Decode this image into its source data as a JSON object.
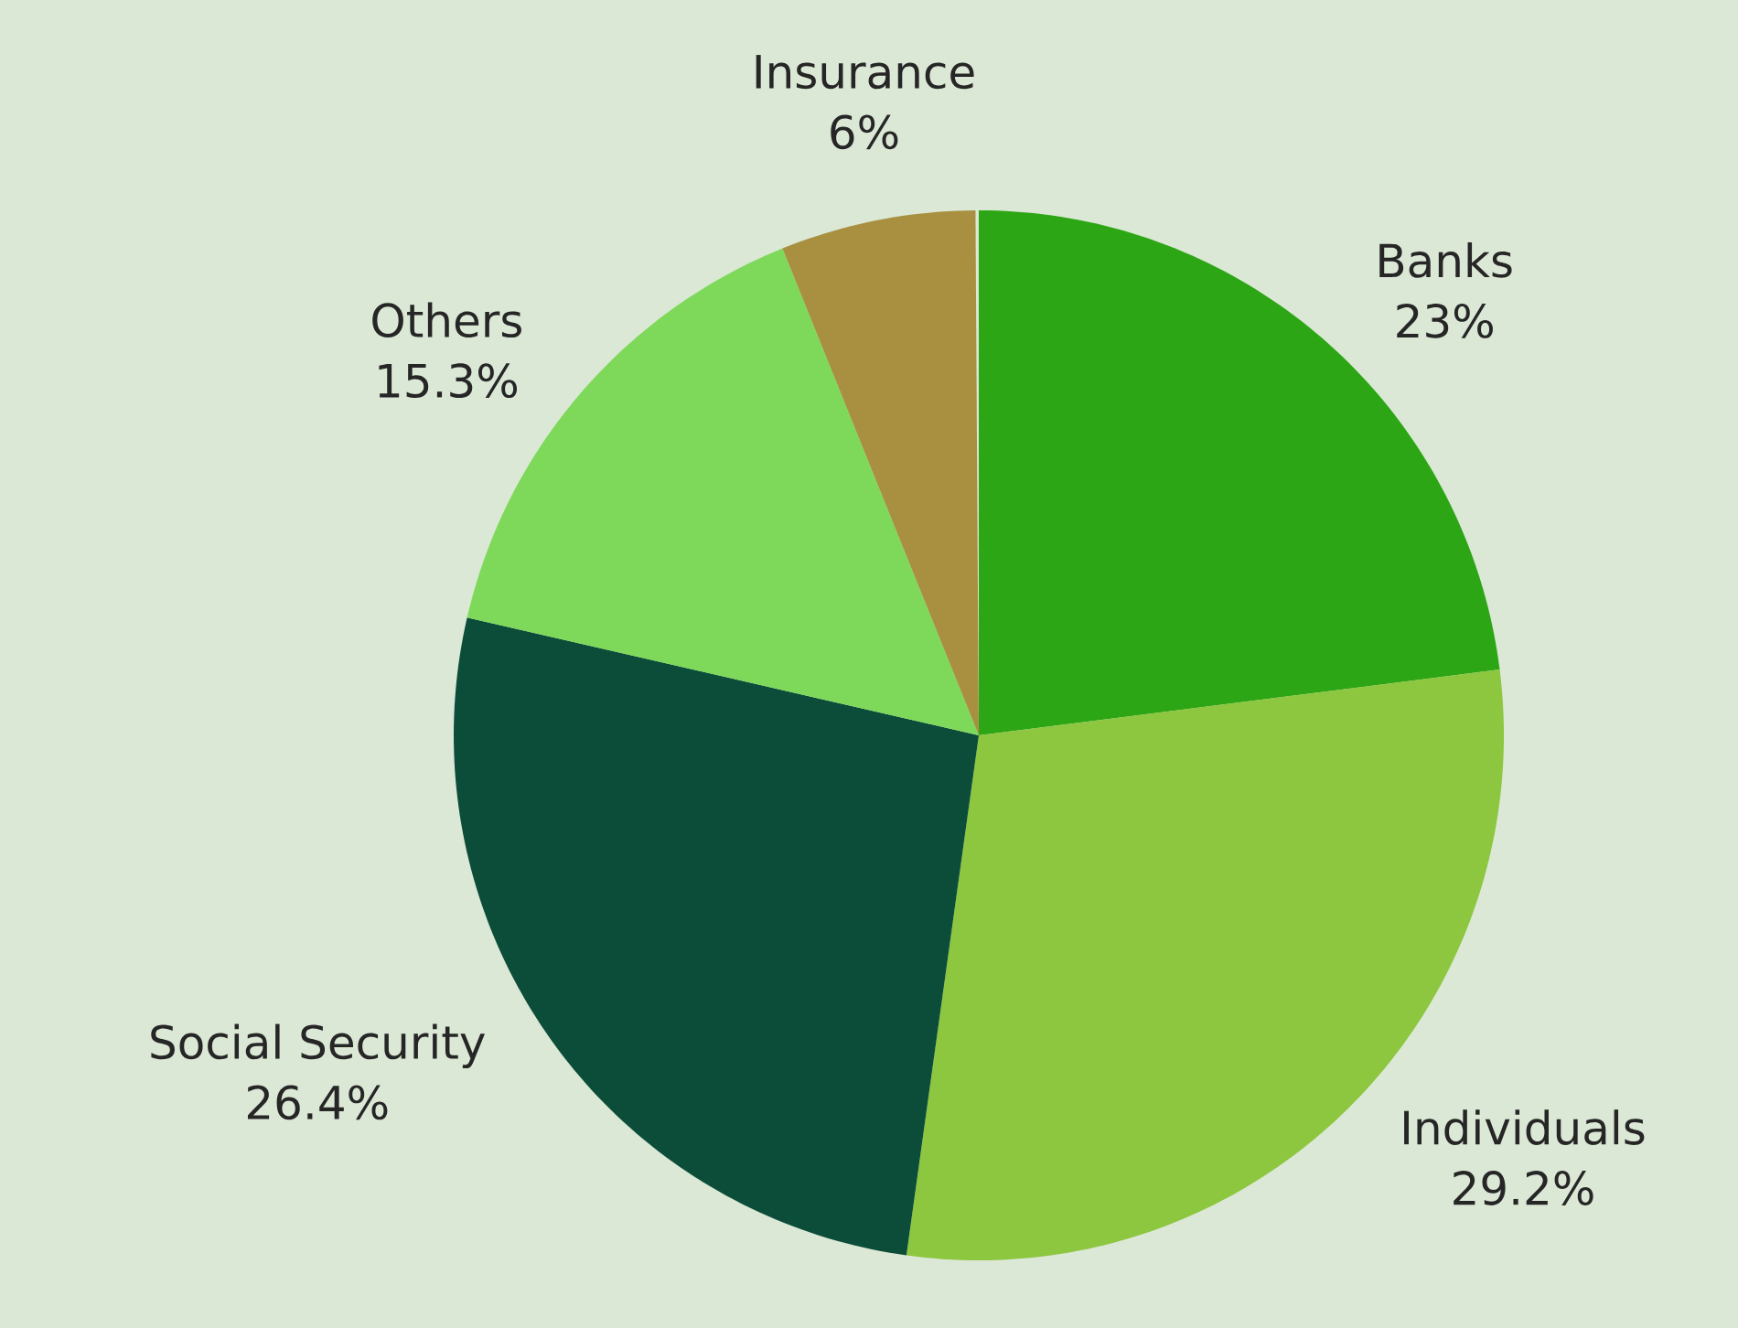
{
  "chart_data": {
    "type": "pie",
    "categories": [
      "Banks",
      "Individuals",
      "Social Security",
      "Others",
      "Insurance"
    ],
    "values": [
      23,
      29.2,
      26.4,
      15.3,
      6
    ],
    "value_labels": [
      "23%",
      "29.2%",
      "26.4%",
      "15.3%",
      "6%"
    ],
    "colors": [
      "#2ca614",
      "#8dc63f",
      "#0b4d38",
      "#7ed95a",
      "#a89040"
    ]
  }
}
